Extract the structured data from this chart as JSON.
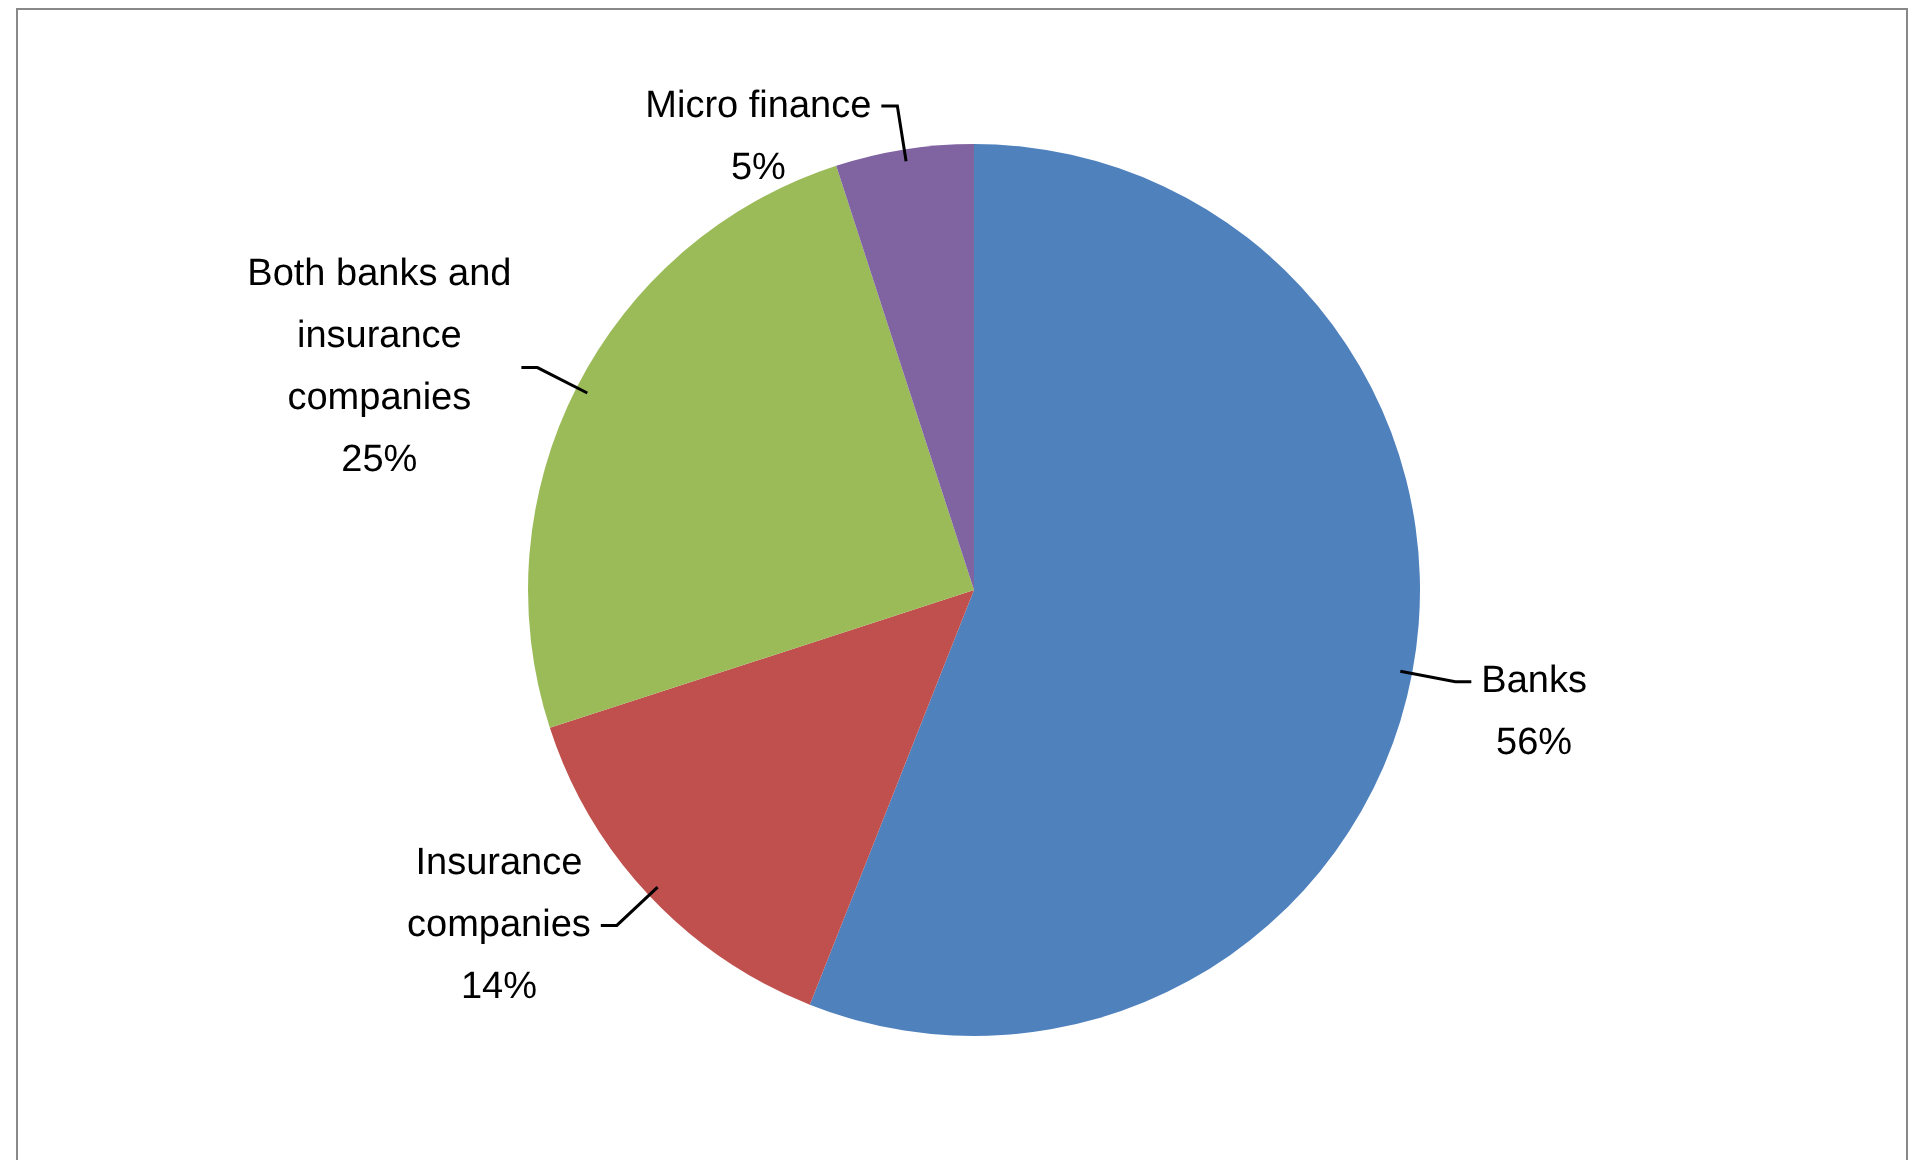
{
  "chart_data": {
    "type": "pie",
    "categories": [
      "Banks",
      "Insurance companies",
      "Both banks and insurance companies",
      "Micro finance"
    ],
    "values": [
      56,
      14,
      25,
      5
    ],
    "value_labels": [
      "56%",
      "14%",
      "25%",
      "5%"
    ],
    "colors": [
      "#4f81bd",
      "#c0504d",
      "#9bbb59",
      "#8064a2"
    ],
    "legend": false
  }
}
